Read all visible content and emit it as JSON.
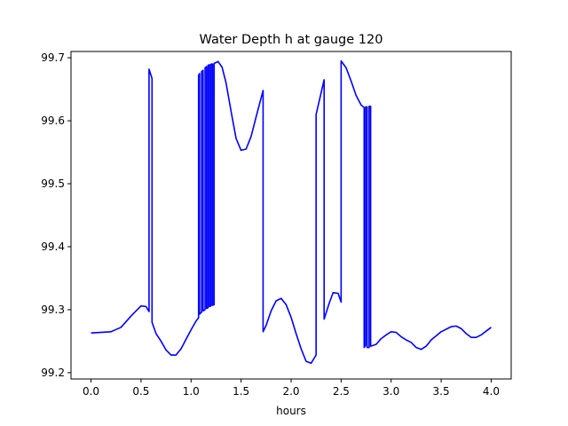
{
  "chart_data": {
    "type": "line",
    "title": "Water Depth h at gauge 120",
    "xlabel": "hours",
    "ylabel": "",
    "xlim": [
      -0.2,
      4.2
    ],
    "ylim": [
      99.19,
      99.71
    ],
    "grid": false,
    "x_ticks": [
      0.0,
      0.5,
      1.0,
      1.5,
      2.0,
      2.5,
      3.0,
      3.5,
      4.0
    ],
    "x_tick_labels": [
      "0.0",
      "0.5",
      "1.0",
      "1.5",
      "2.0",
      "2.5",
      "3.0",
      "3.5",
      "4.0"
    ],
    "y_ticks": [
      99.2,
      99.3,
      99.4,
      99.5,
      99.6,
      99.7
    ],
    "y_tick_labels": [
      "99.2",
      "99.3",
      "99.4",
      "99.5",
      "99.6",
      "99.7"
    ],
    "series": [
      {
        "name": "",
        "color": "#0000ff",
        "points": [
          [
            0.0,
            99.263
          ],
          [
            0.2,
            99.265
          ],
          [
            0.3,
            99.272
          ],
          [
            0.4,
            99.29
          ],
          [
            0.5,
            99.306
          ],
          [
            0.55,
            99.305
          ],
          [
            0.58,
            99.297
          ],
          [
            0.58,
            99.682
          ],
          [
            0.61,
            99.667
          ],
          [
            0.61,
            99.28
          ],
          [
            0.65,
            99.262
          ],
          [
            0.7,
            99.25
          ],
          [
            0.75,
            99.236
          ],
          [
            0.8,
            99.228
          ],
          [
            0.85,
            99.228
          ],
          [
            0.9,
            99.238
          ],
          [
            0.95,
            99.253
          ],
          [
            1.0,
            99.268
          ],
          [
            1.05,
            99.282
          ],
          [
            1.075,
            99.287
          ],
          [
            1.075,
            99.672
          ],
          [
            1.085,
            99.675
          ],
          [
            1.085,
            99.293
          ],
          [
            1.105,
            99.296
          ],
          [
            1.105,
            99.678
          ],
          [
            1.12,
            99.68
          ],
          [
            1.12,
            99.298
          ],
          [
            1.14,
            99.3
          ],
          [
            1.14,
            99.684
          ],
          [
            1.155,
            99.686
          ],
          [
            1.155,
            99.302
          ],
          [
            1.17,
            99.303
          ],
          [
            1.17,
            99.688
          ],
          [
            1.185,
            99.689
          ],
          [
            1.185,
            99.305
          ],
          [
            1.2,
            99.306
          ],
          [
            1.2,
            99.69
          ],
          [
            1.215,
            99.69
          ],
          [
            1.215,
            99.307
          ],
          [
            1.23,
            99.308
          ],
          [
            1.23,
            99.691
          ],
          [
            1.27,
            99.694
          ],
          [
            1.31,
            99.685
          ],
          [
            1.35,
            99.66
          ],
          [
            1.4,
            99.615
          ],
          [
            1.45,
            99.572
          ],
          [
            1.5,
            99.553
          ],
          [
            1.55,
            99.555
          ],
          [
            1.6,
            99.575
          ],
          [
            1.65,
            99.606
          ],
          [
            1.72,
            99.648
          ],
          [
            1.72,
            99.265
          ],
          [
            1.75,
            99.275
          ],
          [
            1.8,
            99.298
          ],
          [
            1.85,
            99.314
          ],
          [
            1.9,
            99.318
          ],
          [
            1.95,
            99.308
          ],
          [
            2.0,
            99.288
          ],
          [
            2.05,
            99.262
          ],
          [
            2.1,
            99.238
          ],
          [
            2.15,
            99.218
          ],
          [
            2.2,
            99.215
          ],
          [
            2.25,
            99.228
          ],
          [
            2.25,
            99.61
          ],
          [
            2.33,
            99.665
          ],
          [
            2.33,
            99.285
          ],
          [
            2.38,
            99.31
          ],
          [
            2.42,
            99.327
          ],
          [
            2.47,
            99.326
          ],
          [
            2.5,
            99.312
          ],
          [
            2.5,
            99.695
          ],
          [
            2.55,
            99.684
          ],
          [
            2.6,
            99.663
          ],
          [
            2.65,
            99.64
          ],
          [
            2.7,
            99.625
          ],
          [
            2.73,
            99.621
          ],
          [
            2.73,
            99.24
          ],
          [
            2.745,
            99.243
          ],
          [
            2.745,
            99.622
          ],
          [
            2.76,
            99.622
          ],
          [
            2.76,
            99.24
          ],
          [
            2.78,
            99.24
          ],
          [
            2.78,
            99.623
          ],
          [
            2.795,
            99.623
          ],
          [
            2.795,
            99.242
          ],
          [
            2.85,
            99.245
          ],
          [
            2.9,
            99.254
          ],
          [
            2.95,
            99.26
          ],
          [
            3.0,
            99.265
          ],
          [
            3.05,
            99.264
          ],
          [
            3.1,
            99.257
          ],
          [
            3.15,
            99.252
          ],
          [
            3.2,
            99.248
          ],
          [
            3.25,
            99.24
          ],
          [
            3.3,
            99.237
          ],
          [
            3.35,
            99.242
          ],
          [
            3.4,
            99.252
          ],
          [
            3.5,
            99.265
          ],
          [
            3.6,
            99.273
          ],
          [
            3.65,
            99.274
          ],
          [
            3.7,
            99.27
          ],
          [
            3.75,
            99.262
          ],
          [
            3.8,
            99.256
          ],
          [
            3.85,
            99.256
          ],
          [
            3.9,
            99.26
          ],
          [
            3.95,
            99.266
          ],
          [
            4.0,
            99.272
          ]
        ]
      }
    ]
  }
}
